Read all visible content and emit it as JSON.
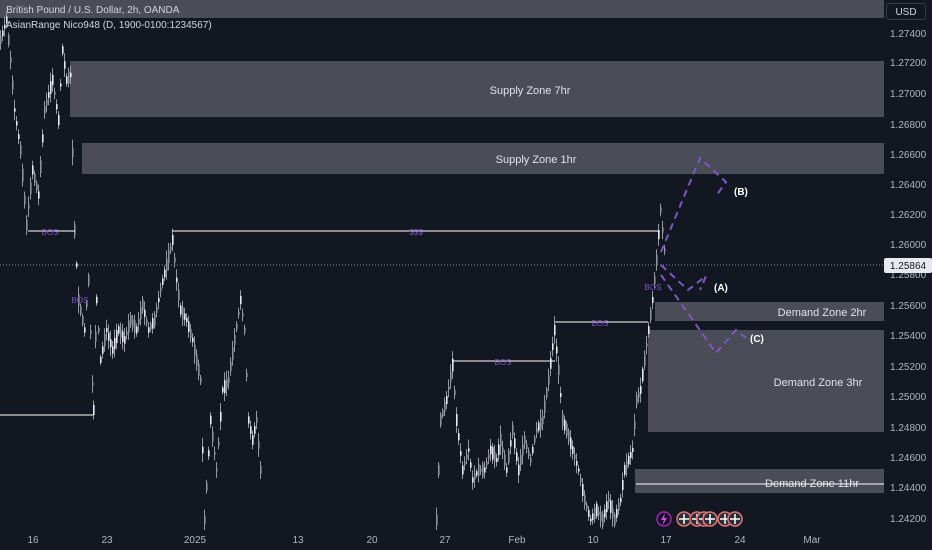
{
  "header": {
    "line1": "British Pound / U.S. Dollar, 2h, OANDA",
    "line2": "AsianRange Nico948 (D, 1900-0100:1234567)"
  },
  "currency_button": "USD",
  "price_axis": {
    "ticks": [
      "1.27400",
      "1.27200",
      "1.27000",
      "1.26800",
      "1.26600",
      "1.26400",
      "1.26200",
      "1.26000",
      "1.25800",
      "1.25600",
      "1.25400",
      "1.25200",
      "1.25000",
      "1.24800",
      "1.24600",
      "1.24400",
      "1.24200"
    ],
    "current_price": "1.25864"
  },
  "time_axis": {
    "ticks": [
      "16",
      "23",
      "2025",
      "13",
      "20",
      "27",
      "Feb",
      "10",
      "17",
      "24",
      "Mar"
    ]
  },
  "zones": {
    "supply_7hr": "Supply Zone 7hr",
    "supply_1hr": "Supply Zone 1hr",
    "demand_2hr": "Demand Zone 2hr",
    "demand_3hr": "Demand Zone 3hr",
    "demand_11hr": "Demand Zone 11hr"
  },
  "structure_labels": {
    "bos_1": "BOS",
    "bos_2": "BOS",
    "ssl": "$$$",
    "bos_3": "BOS",
    "bos_4": "BOS",
    "bos_5": "BOS"
  },
  "scenarios": {
    "a": "(A)",
    "b": "(B)",
    "c": "(C)"
  },
  "colors": {
    "background": "#131722",
    "candle": "#c9ccd4",
    "zone_fill": "#4a4d57",
    "structure": "#7e57c2",
    "projection": "#7e57c2"
  },
  "icons": [
    "lightning-icon",
    "event-flag-icon",
    "event-flag-icon",
    "event-flag-icon",
    "event-flag-icon",
    "event-flag-icon",
    "event-flag-icon"
  ]
}
